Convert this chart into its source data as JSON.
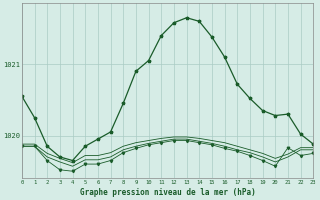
{
  "title": "Graphe pression niveau de la mer (hPa)",
  "background_color": "#d6ece6",
  "grid_color": "#aaccC4",
  "line_color": "#1a5c2a",
  "x_min": 0,
  "x_max": 23,
  "y_min": 1019.4,
  "y_max": 1021.85,
  "y_ticks": [
    1020,
    1021
  ],
  "x_ticks": [
    0,
    1,
    2,
    3,
    4,
    5,
    6,
    7,
    8,
    9,
    10,
    11,
    12,
    13,
    14,
    15,
    16,
    17,
    18,
    19,
    20,
    21,
    22,
    23
  ],
  "main_y": [
    1020.55,
    1020.25,
    1019.85,
    1019.7,
    1019.65,
    1019.85,
    1019.95,
    1020.05,
    1020.45,
    1020.9,
    1021.05,
    1021.4,
    1021.58,
    1021.65,
    1021.6,
    1021.38,
    1021.1,
    1020.72,
    1020.52,
    1020.35,
    1020.28,
    1020.3,
    1020.02,
    1019.88
  ],
  "flat1_y": [
    1019.88,
    1019.88,
    1019.75,
    1019.68,
    1019.62,
    1019.72,
    1019.72,
    1019.76,
    1019.85,
    1019.9,
    1019.93,
    1019.96,
    1019.98,
    1019.98,
    1019.96,
    1019.93,
    1019.9,
    1019.85,
    1019.8,
    1019.75,
    1019.68,
    1019.74,
    1019.83,
    1019.83
  ],
  "flat2_y": [
    1019.85,
    1019.85,
    1019.7,
    1019.63,
    1019.57,
    1019.66,
    1019.66,
    1019.7,
    1019.8,
    1019.85,
    1019.89,
    1019.92,
    1019.95,
    1019.95,
    1019.92,
    1019.89,
    1019.85,
    1019.8,
    1019.76,
    1019.7,
    1019.63,
    1019.7,
    1019.8,
    1019.8
  ],
  "spiky_y": [
    1019.85,
    1019.85,
    1019.65,
    1019.52,
    1019.5,
    1019.6,
    1019.6,
    1019.65,
    1019.76,
    1019.82,
    1019.87,
    1019.9,
    1019.93,
    1019.93,
    1019.9,
    1019.87,
    1019.82,
    1019.78,
    1019.72,
    1019.65,
    1019.57,
    1019.83,
    1019.72,
    1019.75
  ]
}
